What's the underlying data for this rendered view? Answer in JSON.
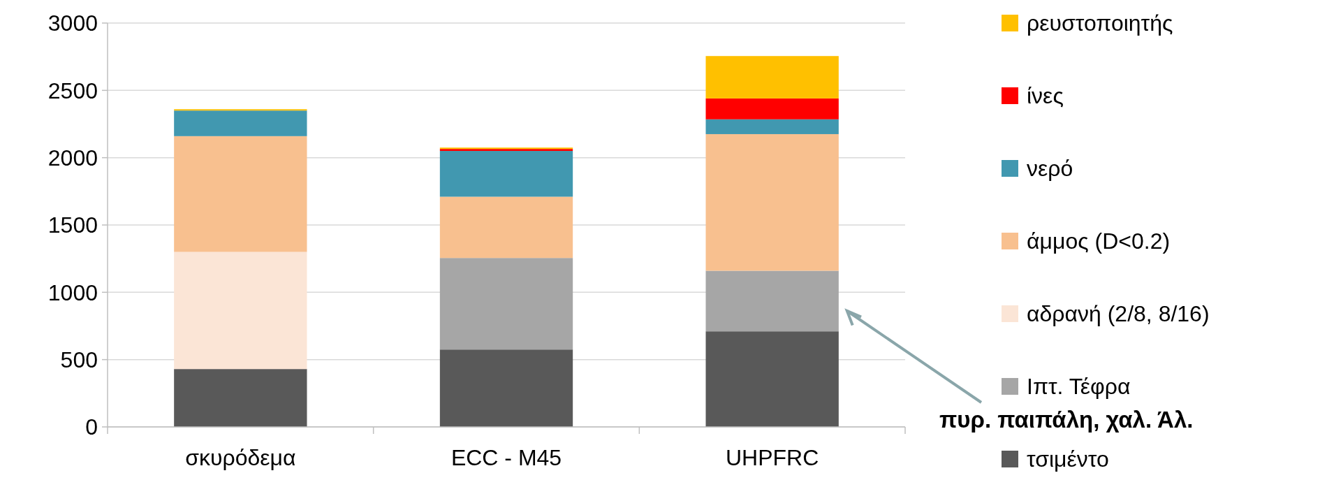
{
  "chart_data": {
    "type": "bar",
    "stacked": true,
    "categories": [
      "σκυρόδεμα",
      "ECC - M45",
      "UHPFRC"
    ],
    "series": [
      {
        "name": "τσιμέντο",
        "color": "#595959",
        "values": [
          430,
          575,
          710
        ]
      },
      {
        "name": "Ιπτ. Τέφρα",
        "color": "#a6a6a6",
        "values": [
          0,
          680,
          450
        ]
      },
      {
        "name": "αδρανή (2/8, 8/16)",
        "color": "#fbe5d6",
        "values": [
          870,
          0,
          0
        ]
      },
      {
        "name": "άμμος (D<0.2)",
        "color": "#f8c08f",
        "values": [
          860,
          455,
          1015
        ]
      },
      {
        "name": "νερό",
        "color": "#4198b0",
        "values": [
          190,
          340,
          110
        ]
      },
      {
        "name": "ίνες",
        "color": "#ff0000",
        "values": [
          0,
          15,
          155
        ]
      },
      {
        "name": "ρευστοποιητής",
        "color": "#ffc000",
        "values": [
          10,
          10,
          315
        ]
      }
    ],
    "ylim": [
      0,
      3000
    ],
    "yticks": [
      0,
      500,
      1000,
      1500,
      2000,
      2500,
      3000
    ],
    "grid": "y",
    "legend": "right",
    "annotations": [
      "πυρ. παιπάλη, χαλ. Άλ."
    ]
  }
}
